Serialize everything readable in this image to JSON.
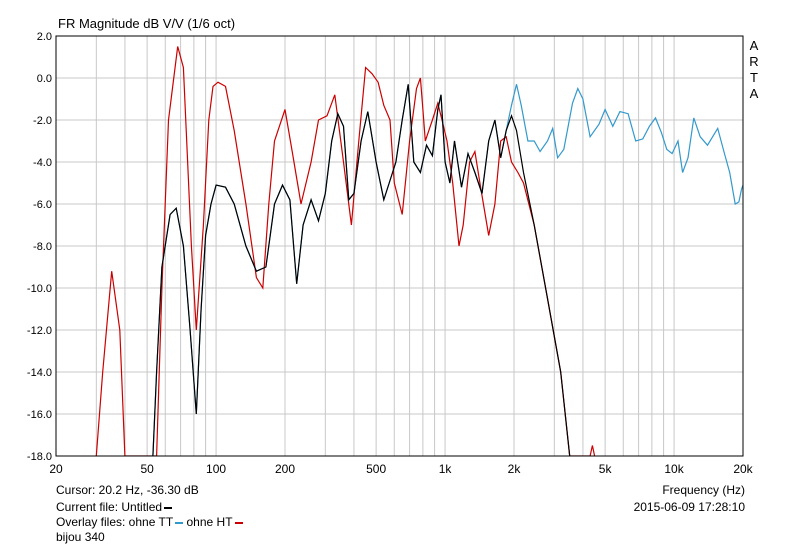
{
  "chart_data": {
    "type": "line",
    "title": "FR Magnitude dB V/V (1/6 oct)",
    "side_label": [
      "A",
      "R",
      "T",
      "A"
    ],
    "xlabel": "Frequency (Hz)",
    "xscale": "log",
    "xlim": [
      20,
      20000
    ],
    "ylim": [
      -18,
      2
    ],
    "grid": true,
    "y_ticks": [
      2,
      0,
      -2,
      -4,
      -6,
      -8,
      -10,
      -12,
      -14,
      -16,
      -18
    ],
    "y_tick_labels": [
      "2.0",
      "0.0",
      "-2.0",
      "-4.0",
      "-6.0",
      "-8.0",
      "-10.0",
      "-12.0",
      "-14.0",
      "-16.0",
      "-18.0"
    ],
    "x_ticks": [
      20,
      50,
      100,
      200,
      500,
      1000,
      2000,
      5000,
      10000,
      20000
    ],
    "x_tick_labels": [
      "20",
      "50",
      "100",
      "200",
      "500",
      "1k",
      "2k",
      "5k",
      "10k",
      "20k"
    ],
    "series": [
      {
        "name": "ohne HT",
        "color": "#cc0000",
        "points": [
          [
            30,
            -18
          ],
          [
            32,
            -14
          ],
          [
            35,
            -9.2
          ],
          [
            38,
            -12
          ],
          [
            40,
            -18
          ],
          [
            55,
            -18
          ],
          [
            58,
            -10
          ],
          [
            62,
            -2
          ],
          [
            68,
            1.5
          ],
          [
            72,
            0.5
          ],
          [
            78,
            -8
          ],
          [
            82,
            -12
          ],
          [
            88,
            -7
          ],
          [
            93,
            -2
          ],
          [
            97,
            -0.4
          ],
          [
            102,
            -0.2
          ],
          [
            110,
            -0.4
          ],
          [
            120,
            -2.5
          ],
          [
            135,
            -6
          ],
          [
            150,
            -9.5
          ],
          [
            160,
            -10
          ],
          [
            170,
            -6
          ],
          [
            180,
            -3
          ],
          [
            200,
            -1.5
          ],
          [
            215,
            -3.5
          ],
          [
            235,
            -6
          ],
          [
            260,
            -4
          ],
          [
            280,
            -2
          ],
          [
            305,
            -1.8
          ],
          [
            330,
            -0.8
          ],
          [
            360,
            -4
          ],
          [
            390,
            -7
          ],
          [
            420,
            -3
          ],
          [
            450,
            0.5
          ],
          [
            480,
            0.2
          ],
          [
            510,
            -0.2
          ],
          [
            540,
            -1.3
          ],
          [
            575,
            -2
          ],
          [
            600,
            -5
          ],
          [
            650,
            -6.5
          ],
          [
            700,
            -3
          ],
          [
            750,
            -0.5
          ],
          [
            780,
            0
          ],
          [
            800,
            -1.5
          ],
          [
            820,
            -3
          ],
          [
            880,
            -2
          ],
          [
            930,
            -1.2
          ],
          [
            970,
            -2
          ],
          [
            1020,
            -3
          ],
          [
            1080,
            -5
          ],
          [
            1150,
            -8
          ],
          [
            1200,
            -7
          ],
          [
            1280,
            -4
          ],
          [
            1350,
            -3.5
          ],
          [
            1420,
            -5
          ],
          [
            1550,
            -7.5
          ],
          [
            1650,
            -6
          ],
          [
            1750,
            -3
          ],
          [
            1850,
            -2.8
          ],
          [
            1950,
            -4
          ],
          [
            2080,
            -4.5
          ],
          [
            2200,
            -5
          ],
          [
            2450,
            -7
          ],
          [
            2800,
            -10.5
          ],
          [
            3200,
            -14
          ],
          [
            3500,
            -18
          ],
          [
            4300,
            -18
          ],
          [
            4400,
            -17.5
          ],
          [
            4500,
            -18
          ]
        ]
      },
      {
        "name": "ohne TT",
        "color": "#3399cc",
        "points": [
          [
            53,
            -18
          ],
          [
            55,
            -14
          ],
          [
            58,
            -9
          ],
          [
            63,
            -6.5
          ],
          [
            67,
            -6.2
          ],
          [
            72,
            -8
          ],
          [
            77,
            -12
          ],
          [
            82,
            -16
          ],
          [
            86,
            -11
          ],
          [
            90,
            -7.5
          ],
          [
            95,
            -6
          ],
          [
            100,
            -5.1
          ],
          [
            110,
            -5.2
          ],
          [
            120,
            -6
          ],
          [
            135,
            -8
          ],
          [
            150,
            -9.2
          ],
          [
            165,
            -9
          ],
          [
            180,
            -6
          ],
          [
            195,
            -5.1
          ],
          [
            210,
            -5.8
          ],
          [
            225,
            -9.8
          ],
          [
            240,
            -7
          ],
          [
            260,
            -5.8
          ],
          [
            280,
            -6.8
          ],
          [
            300,
            -5.5
          ],
          [
            320,
            -3
          ],
          [
            340,
            -1.7
          ],
          [
            360,
            -2.3
          ],
          [
            380,
            -5.8
          ],
          [
            400,
            -5.5
          ],
          [
            430,
            -3
          ],
          [
            460,
            -1.6
          ],
          [
            500,
            -4
          ],
          [
            540,
            -5.8
          ],
          [
            570,
            -5
          ],
          [
            610,
            -4
          ],
          [
            650,
            -2
          ],
          [
            690,
            -0.3
          ],
          [
            730,
            -4
          ],
          [
            780,
            -4.5
          ],
          [
            830,
            -3.2
          ],
          [
            880,
            -3.7
          ],
          [
            930,
            -1.5
          ],
          [
            960,
            -0.8
          ],
          [
            1000,
            -4
          ],
          [
            1050,
            -5
          ],
          [
            1100,
            -3
          ],
          [
            1180,
            -5.2
          ],
          [
            1260,
            -3.6
          ],
          [
            1350,
            -4.5
          ],
          [
            1450,
            -5.5
          ],
          [
            1550,
            -3
          ],
          [
            1650,
            -2
          ],
          [
            1750,
            -3.8
          ],
          [
            1850,
            -2.5
          ],
          [
            1950,
            -1.3
          ],
          [
            2050,
            -0.3
          ],
          [
            2150,
            -1.3
          ],
          [
            2300,
            -3
          ],
          [
            2450,
            -3
          ],
          [
            2600,
            -3.5
          ],
          [
            2800,
            -3
          ],
          [
            2950,
            -2.4
          ],
          [
            3100,
            -3.8
          ],
          [
            3300,
            -3.4
          ],
          [
            3600,
            -1.2
          ],
          [
            3800,
            -0.5
          ],
          [
            4000,
            -1
          ],
          [
            4300,
            -2.8
          ],
          [
            4700,
            -2.2
          ],
          [
            5000,
            -1.5
          ],
          [
            5400,
            -2.3
          ],
          [
            5800,
            -1.6
          ],
          [
            6300,
            -1.7
          ],
          [
            6800,
            -3
          ],
          [
            7300,
            -2.9
          ],
          [
            7800,
            -2.3
          ],
          [
            8300,
            -1.9
          ],
          [
            8800,
            -2.6
          ],
          [
            9300,
            -3.4
          ],
          [
            9800,
            -3.6
          ],
          [
            10400,
            -3
          ],
          [
            10900,
            -4.5
          ],
          [
            11500,
            -3.8
          ],
          [
            12200,
            -1.9
          ],
          [
            13000,
            -2.8
          ],
          [
            14000,
            -3.2
          ],
          [
            15500,
            -2.4
          ],
          [
            16500,
            -3.5
          ],
          [
            17500,
            -4.5
          ],
          [
            18500,
            -6
          ],
          [
            19200,
            -5.9
          ],
          [
            19700,
            -5.3
          ],
          [
            20000,
            -5.1
          ]
        ]
      },
      {
        "name": "Untitled",
        "color": "#000000",
        "points": [
          [
            53,
            -18
          ],
          [
            55,
            -14
          ],
          [
            58,
            -9
          ],
          [
            63,
            -6.5
          ],
          [
            67,
            -6.2
          ],
          [
            72,
            -8
          ],
          [
            77,
            -12
          ],
          [
            82,
            -16
          ],
          [
            86,
            -11
          ],
          [
            90,
            -7.5
          ],
          [
            95,
            -6
          ],
          [
            100,
            -5.1
          ],
          [
            110,
            -5.2
          ],
          [
            120,
            -6
          ],
          [
            135,
            -8
          ],
          [
            150,
            -9.2
          ],
          [
            165,
            -9
          ],
          [
            180,
            -6
          ],
          [
            195,
            -5.1
          ],
          [
            210,
            -5.8
          ],
          [
            225,
            -9.8
          ],
          [
            240,
            -7
          ],
          [
            260,
            -5.8
          ],
          [
            280,
            -6.8
          ],
          [
            300,
            -5.5
          ],
          [
            320,
            -3
          ],
          [
            340,
            -1.7
          ],
          [
            360,
            -2.3
          ],
          [
            380,
            -5.8
          ],
          [
            400,
            -5.5
          ],
          [
            430,
            -3
          ],
          [
            460,
            -1.6
          ],
          [
            500,
            -4
          ],
          [
            540,
            -5.8
          ],
          [
            570,
            -5
          ],
          [
            610,
            -4
          ],
          [
            650,
            -2
          ],
          [
            690,
            -0.3
          ],
          [
            730,
            -4
          ],
          [
            780,
            -4.5
          ],
          [
            830,
            -3.2
          ],
          [
            880,
            -3.7
          ],
          [
            930,
            -1.5
          ],
          [
            960,
            -0.8
          ],
          [
            1000,
            -4
          ],
          [
            1050,
            -5
          ],
          [
            1100,
            -3
          ],
          [
            1180,
            -5.2
          ],
          [
            1260,
            -3.6
          ],
          [
            1350,
            -4.5
          ],
          [
            1450,
            -5.5
          ],
          [
            1550,
            -3
          ],
          [
            1650,
            -2
          ],
          [
            1750,
            -3.8
          ],
          [
            1850,
            -2.5
          ],
          [
            1950,
            -1.8
          ],
          [
            2050,
            -2.5
          ],
          [
            2200,
            -4.5
          ],
          [
            2450,
            -7
          ],
          [
            2800,
            -10.5
          ],
          [
            3200,
            -14
          ],
          [
            3500,
            -18
          ]
        ]
      }
    ]
  },
  "footer": {
    "cursor": "Cursor: 20.2 Hz, -36.30 dB",
    "current_file": "Current file: Untitled",
    "overlay_prefix": "Overlay files: ohne TT",
    "overlay_second": " ohne HT",
    "caption": "bijou 340",
    "xlabel": "Frequency (Hz)",
    "datetime": "2015-06-09  17:28:10"
  }
}
